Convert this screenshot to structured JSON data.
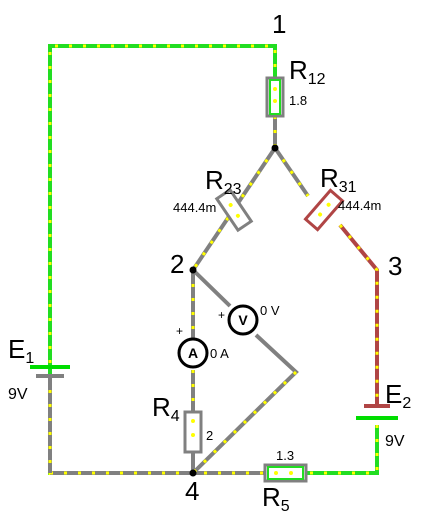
{
  "nodes": {
    "n1": "1",
    "n2": "2",
    "n3": "3",
    "n4": "4"
  },
  "resistors": {
    "r12": {
      "letter": "R",
      "sub": "12",
      "value": "1.8"
    },
    "r23": {
      "letter": "R",
      "sub": "23",
      "value": "444.4m"
    },
    "r31": {
      "letter": "R",
      "sub": "31",
      "value": "444.4m"
    },
    "r4": {
      "letter": "R",
      "sub": "4",
      "value": "2"
    },
    "r5": {
      "letter": "R",
      "sub": "5",
      "value": "1.3"
    }
  },
  "sources": {
    "e1": {
      "letter": "E",
      "sub": "1",
      "value": "9V"
    },
    "e2": {
      "letter": "E",
      "sub": "2",
      "value": "9V"
    }
  },
  "meters": {
    "ammeter": {
      "symbol": "A",
      "reading": "0 A",
      "plus": "+"
    },
    "voltmeter": {
      "symbol": "V",
      "reading": "0 V",
      "plus": "+"
    }
  },
  "colors": {
    "wire": "#808080",
    "active": "#22dd22",
    "dot": "#ffff00",
    "hot": "#b04545",
    "source_green": "#00dd00"
  }
}
